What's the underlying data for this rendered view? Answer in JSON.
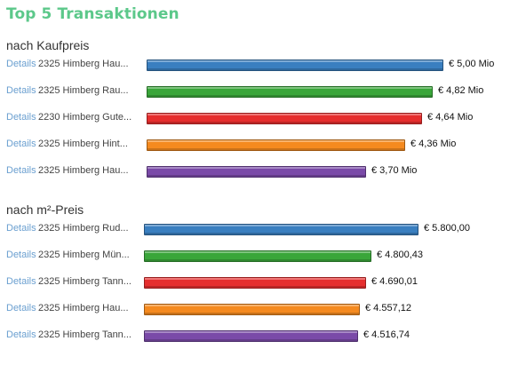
{
  "title": "Top 5 Transaktionen",
  "sections": [
    {
      "heading": "nach Kaufpreis",
      "unit": "€ Mio",
      "rows": [
        {
          "details": "Details",
          "address": "2325 Himberg Hau...",
          "value_label": "€ 5,00 Mio",
          "value": 5.0,
          "color": "#3a7fc0"
        },
        {
          "details": "Details",
          "address": "2325 Himberg Rau...",
          "value_label": "€ 4,82 Mio",
          "value": 4.82,
          "color": "#3aa63a"
        },
        {
          "details": "Details",
          "address": "2230 Himberg Gute...",
          "value_label": "€ 4,64 Mio",
          "value": 4.64,
          "color": "#e62e2e"
        },
        {
          "details": "Details",
          "address": "2325 Himberg Hint...",
          "value_label": "€ 4,36 Mio",
          "value": 4.36,
          "color": "#f58a1f"
        },
        {
          "details": "Details",
          "address": "2325 Himberg Hau...",
          "value_label": "€ 3,70 Mio",
          "value": 3.7,
          "color": "#7a4aa8"
        }
      ]
    },
    {
      "heading": "nach m²-Preis",
      "unit": "€",
      "rows": [
        {
          "details": "Details",
          "address": "2325 Himberg Rud...",
          "value_label": "€ 5.800,00",
          "value": 5800.0,
          "color": "#3a7fc0"
        },
        {
          "details": "Details",
          "address": "2325 Himberg Mün...",
          "value_label": "€ 4.800,43",
          "value": 4800.43,
          "color": "#3aa63a"
        },
        {
          "details": "Details",
          "address": "2325 Himberg Tann...",
          "value_label": "€ 4.690,01",
          "value": 4690.01,
          "color": "#e62e2e"
        },
        {
          "details": "Details",
          "address": "2325 Himberg Hau...",
          "value_label": "€ 4.557,12",
          "value": 4557.12,
          "color": "#f58a1f"
        },
        {
          "details": "Details",
          "address": "2325 Himberg Tann...",
          "value_label": "€ 4.516,74",
          "value": 4516.74,
          "color": "#7a4aa8"
        }
      ]
    }
  ]
}
